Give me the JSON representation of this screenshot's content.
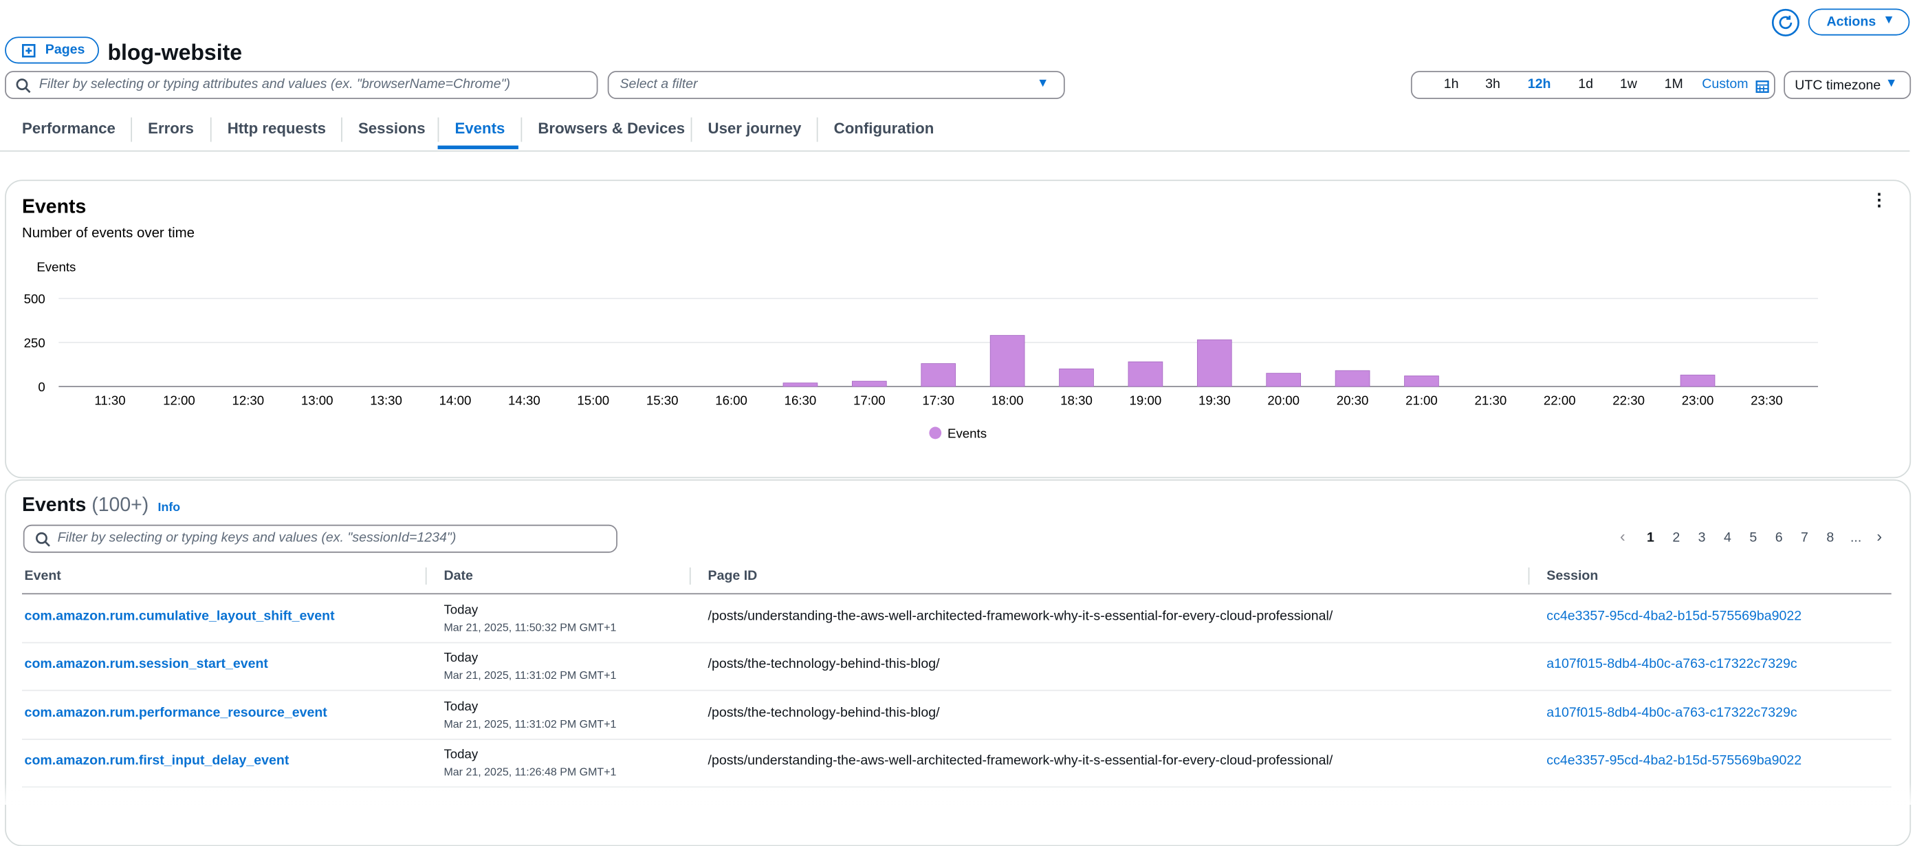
{
  "header": {
    "pages_button": "Pages",
    "title": "blog-website",
    "actions": "Actions"
  },
  "filters": {
    "search_placeholder": "Filter by selecting or typing attributes and values (ex. \"browserName=Chrome\")",
    "select_placeholder": "Select a filter",
    "time_ranges": [
      "1h",
      "3h",
      "12h",
      "1d",
      "1w",
      "1M",
      "Custom"
    ],
    "timezone": "UTC timezone"
  },
  "tabs": [
    "Performance",
    "Errors",
    "Http requests",
    "Sessions",
    "Events",
    "Browsers & Devices",
    "User journey",
    "Configuration"
  ],
  "chart_data": {
    "type": "bar",
    "title": "Events",
    "subtitle": "Number of events over time",
    "y_label": "Events",
    "categories": [
      "11:30",
      "12:00",
      "12:30",
      "13:00",
      "13:30",
      "14:00",
      "14:30",
      "15:00",
      "15:30",
      "16:00",
      "16:30",
      "17:00",
      "17:30",
      "18:00",
      "18:30",
      "19:00",
      "19:30",
      "20:00",
      "20:30",
      "21:00",
      "21:30",
      "22:00",
      "22:30",
      "23:00",
      "23:30"
    ],
    "series": [
      {
        "name": "Events",
        "color": "#c98be0",
        "values": [
          0,
          0,
          0,
          0,
          0,
          0,
          0,
          0,
          0,
          0,
          20,
          30,
          130,
          290,
          100,
          140,
          265,
          75,
          90,
          60,
          0,
          0,
          0,
          65,
          0
        ]
      }
    ],
    "ylim": [
      0,
      500
    ],
    "yticks": [
      0,
      250,
      500
    ],
    "grid": true
  },
  "table": {
    "title": "Events",
    "count": "(100+)",
    "info": "Info",
    "search_placeholder": "Filter by selecting or typing keys and values (ex. \"sessionId=1234\")",
    "pages": [
      "1",
      "2",
      "3",
      "4",
      "5",
      "6",
      "7",
      "8",
      "..."
    ],
    "columns": [
      "Event",
      "Date",
      "Page ID",
      "Session"
    ],
    "rows": [
      [
        "com.amazon.rum.cumulative_layout_shift_event",
        "Today",
        "Mar 21, 2025, 11:50:32 PM GMT+1",
        "/posts/understanding-the-aws-well-architected-framework-why-it-s-essential-for-every-cloud-professional/",
        "cc4e3357-95cd-4ba2-b15d-575569ba9022"
      ],
      [
        "com.amazon.rum.session_start_event",
        "Today",
        "Mar 21, 2025, 11:31:02 PM GMT+1",
        "/posts/the-technology-behind-this-blog/",
        "a107f015-8db4-4b0c-a763-c17322c7329c"
      ],
      [
        "com.amazon.rum.performance_resource_event",
        "Today",
        "Mar 21, 2025, 11:31:02 PM GMT+1",
        "/posts/the-technology-behind-this-blog/",
        "a107f015-8db4-4b0c-a763-c17322c7329c"
      ],
      [
        "com.amazon.rum.first_input_delay_event",
        "Today",
        "Mar 21, 2025, 11:26:48 PM GMT+1",
        "/posts/understanding-the-aws-well-architected-framework-why-it-s-essential-for-every-cloud-professional/",
        "cc4e3357-95cd-4ba2-b15d-575569ba9022"
      ]
    ]
  }
}
